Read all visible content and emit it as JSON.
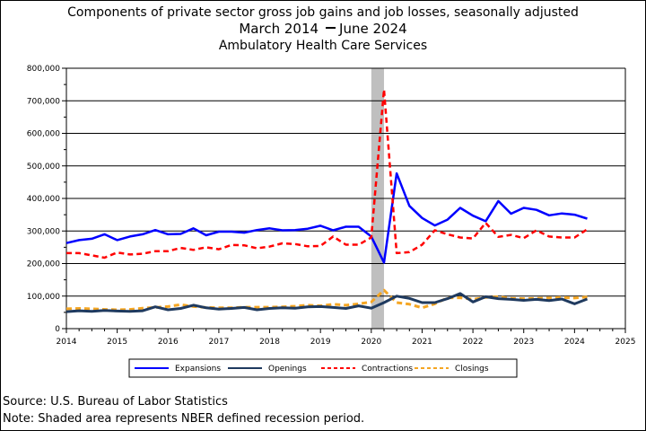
{
  "header": {
    "title_line1": "Components of private sector gross job gains and job losses, seasonally adjusted",
    "range_start": "March 2014",
    "range_end": "June 2024",
    "title_line3": "Ambulatory Health Care Services"
  },
  "footer": {
    "source": "Source: U.S. Bureau of Labor Statistics",
    "note": "Note: Shaded area represents NBER defined recession period."
  },
  "chart_data": {
    "type": "line",
    "title": "Components of private sector gross job gains and job losses, seasonally adjusted",
    "xlim": [
      2014,
      2025
    ],
    "ylim": [
      0,
      800000
    ],
    "x_ticks": [
      2014,
      2015,
      2016,
      2017,
      2018,
      2019,
      2020,
      2021,
      2022,
      2023,
      2024,
      2025
    ],
    "y_ticks": [
      0,
      100000,
      200000,
      300000,
      400000,
      500000,
      600000,
      700000,
      800000
    ],
    "y_tick_labels": [
      "0",
      "100,000",
      "200,000",
      "300,000",
      "400,000",
      "500,000",
      "600,000",
      "700,000",
      "800,000"
    ],
    "grid": "horizontal",
    "legend_position": "bottom",
    "recession_shading": [
      2020.0,
      2020.25
    ],
    "x": [
      2014.0,
      2014.25,
      2014.5,
      2014.75,
      2015.0,
      2015.25,
      2015.5,
      2015.75,
      2016.0,
      2016.25,
      2016.5,
      2016.75,
      2017.0,
      2017.25,
      2017.5,
      2017.75,
      2018.0,
      2018.25,
      2018.5,
      2018.75,
      2019.0,
      2019.25,
      2019.5,
      2019.75,
      2020.0,
      2020.25,
      2020.5,
      2020.75,
      2021.0,
      2021.25,
      2021.5,
      2021.75,
      2022.0,
      2022.25,
      2022.5,
      2022.75,
      2023.0,
      2023.25,
      2023.5,
      2023.75,
      2024.0,
      2024.25
    ],
    "series": [
      {
        "name": "Expansions",
        "color": "#0000ff",
        "dash": "none",
        "values": [
          263000,
          272000,
          276000,
          290000,
          272000,
          283000,
          290000,
          303000,
          290000,
          291000,
          308000,
          287000,
          298000,
          298000,
          295000,
          303000,
          308000,
          302000,
          303000,
          307000,
          316000,
          302000,
          313000,
          313000,
          283000,
          203000,
          477000,
          377000,
          340000,
          317000,
          335000,
          371000,
          347000,
          330000,
          392000,
          353000,
          371000,
          365000,
          348000,
          354000,
          350000,
          338000
        ]
      },
      {
        "name": "Openings",
        "color": "#1f3a5f",
        "dash": "none",
        "values": [
          52000,
          55000,
          53000,
          56000,
          54000,
          53000,
          55000,
          67000,
          58000,
          62000,
          72000,
          64000,
          60000,
          62000,
          65000,
          58000,
          62000,
          64000,
          63000,
          67000,
          68000,
          65000,
          62000,
          70000,
          63000,
          80000,
          100000,
          93000,
          80000,
          80000,
          92000,
          108000,
          82000,
          98000,
          92000,
          90000,
          87000,
          90000,
          86000,
          91000,
          76000,
          91000
        ]
      },
      {
        "name": "Contractions",
        "color": "#ff0000",
        "dash": "6,4",
        "values": [
          232000,
          232000,
          225000,
          218000,
          234000,
          228000,
          230000,
          238000,
          238000,
          248000,
          242000,
          250000,
          244000,
          257000,
          256000,
          247000,
          252000,
          262000,
          260000,
          253000,
          254000,
          283000,
          258000,
          258000,
          280000,
          735000,
          232000,
          235000,
          258000,
          302000,
          290000,
          280000,
          277000,
          325000,
          282000,
          288000,
          278000,
          302000,
          283000,
          280000,
          280000,
          305000
        ]
      },
      {
        "name": "Closings",
        "color": "#f5a623",
        "dash": "6,4",
        "values": [
          61000,
          62000,
          61000,
          59000,
          58000,
          59000,
          63000,
          65000,
          68000,
          74000,
          68000,
          65000,
          64000,
          64000,
          66000,
          66000,
          66000,
          67000,
          69000,
          72000,
          70000,
          75000,
          72000,
          76000,
          82000,
          118000,
          80000,
          75000,
          64000,
          76000,
          95000,
          95000,
          90000,
          96000,
          98000,
          93000,
          92000,
          93000,
          94000,
          96000,
          94000,
          97000
        ]
      }
    ]
  }
}
